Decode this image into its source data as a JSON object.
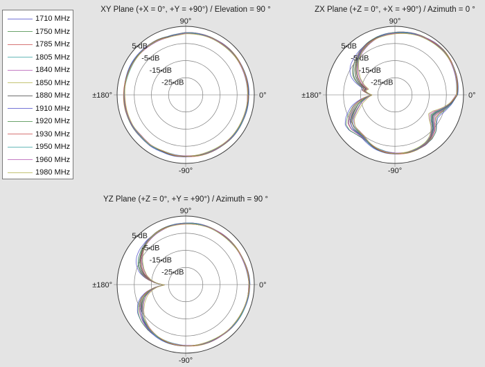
{
  "legend": {
    "items": [
      {
        "label": "1710 MHz",
        "color": "#5050cc"
      },
      {
        "label": "1750 MHz",
        "color": "#468c46"
      },
      {
        "label": "1785 MHz",
        "color": "#cc5050"
      },
      {
        "label": "1805 MHz",
        "color": "#40a8a8"
      },
      {
        "label": "1840 MHz",
        "color": "#b45ab4"
      },
      {
        "label": "1850 MHz",
        "color": "#b4b450"
      },
      {
        "label": "1880 MHz",
        "color": "#4a4a4a"
      },
      {
        "label": "1910 MHz",
        "color": "#5050cc"
      },
      {
        "label": "1920 MHz",
        "color": "#468c46"
      },
      {
        "label": "1930 MHz",
        "color": "#cc5050"
      },
      {
        "label": "1950 MHz",
        "color": "#40a8a8"
      },
      {
        "label": "1960 MHz",
        "color": "#b45ab4"
      },
      {
        "label": "1980 MHz",
        "color": "#b4b450"
      }
    ]
  },
  "series_offset_factors": [
    1.5,
    1.05,
    0.8,
    0.6,
    0.42,
    0.26,
    0.12,
    -0.02,
    -0.18,
    -0.36,
    -0.55,
    -0.76,
    -1.0
  ],
  "chart_data": [
    {
      "type": "polar-line",
      "title": "XY Plane (+X = 0°, +Y = +90°) / Elevation = 90 °",
      "angle_labels": {
        "top": "90°",
        "right": "0°",
        "left": "±180°",
        "bottom": "-90°"
      },
      "r_axis": {
        "min_db": -35,
        "max_db": 5,
        "rings_db": [
          5,
          -5,
          -15,
          -25
        ],
        "ring_labels": [
          "5 dB",
          "-5 dB",
          "-15 dB",
          "-25 dB"
        ]
      },
      "base_pattern_deg_db": [
        [
          0,
          1.3
        ],
        [
          20,
          1.5
        ],
        [
          45,
          1.6
        ],
        [
          65,
          1.4
        ],
        [
          80,
          1.2
        ],
        [
          90,
          1.1
        ],
        [
          97,
          0.5
        ],
        [
          107,
          0.2
        ],
        [
          117,
          0.7
        ],
        [
          130,
          1.0
        ],
        [
          150,
          1.0
        ],
        [
          165,
          0.9
        ],
        [
          180,
          0.8
        ],
        [
          195,
          1.0
        ],
        [
          210,
          0.8
        ],
        [
          222,
          0.5
        ],
        [
          235,
          0.9
        ],
        [
          248,
          0.4
        ],
        [
          260,
          0.8
        ],
        [
          272,
          0.8
        ],
        [
          285,
          1.0
        ],
        [
          300,
          1.2
        ],
        [
          320,
          1.4
        ],
        [
          340,
          1.4
        ],
        [
          360,
          1.3
        ]
      ],
      "series_spread_deg_db": [
        [
          0,
          0.25
        ],
        [
          360,
          0.25
        ]
      ],
      "bundle_jitter_db": 0.3
    },
    {
      "type": "polar-line",
      "title": "ZX Plane (+Z = 0°, +X = +90°) / Azimuth = 0 °",
      "angle_labels": {
        "top": "90°",
        "right": "0°",
        "left": "±180°",
        "bottom": "-90°"
      },
      "r_axis": {
        "min_db": -35,
        "max_db": 5,
        "rings_db": [
          5,
          -5,
          -15,
          -25
        ],
        "ring_labels": [
          "5 dB",
          "-5 dB",
          "-15 dB",
          "-25 dB"
        ]
      },
      "base_pattern_deg_db": [
        [
          0,
          1.0
        ],
        [
          8,
          1.6
        ],
        [
          18,
          2.3
        ],
        [
          30,
          2.9
        ],
        [
          42,
          3.2
        ],
        [
          52,
          3.0
        ],
        [
          62,
          2.6
        ],
        [
          75,
          2.0
        ],
        [
          88,
          1.3
        ],
        [
          98,
          0.6
        ],
        [
          108,
          -0.2
        ],
        [
          118,
          -1.4
        ],
        [
          128,
          -3.0
        ],
        [
          138,
          -5.2
        ],
        [
          147,
          -7.8
        ],
        [
          155,
          -10.5
        ],
        [
          162,
          -14.0
        ],
        [
          168,
          -18.0
        ],
        [
          172,
          -16.8
        ],
        [
          177,
          -19.3
        ],
        [
          180.5,
          -21.6
        ],
        [
          184,
          -19.0
        ],
        [
          189,
          -16.0
        ],
        [
          194,
          -13.0
        ],
        [
          199,
          -10.8
        ],
        [
          205,
          -7.8
        ],
        [
          211,
          -4.8
        ],
        [
          218,
          -3.8
        ],
        [
          226,
          -4.3
        ],
        [
          233,
          -4.4
        ],
        [
          241,
          -3.2
        ],
        [
          251,
          -2.0
        ],
        [
          261,
          -1.2
        ],
        [
          271,
          -0.8
        ],
        [
          282,
          -0.7
        ],
        [
          292,
          -0.9
        ],
        [
          302,
          -1.4
        ],
        [
          310,
          -2.6
        ],
        [
          318,
          -5.0
        ],
        [
          325,
          -8.4
        ],
        [
          331,
          -10.0
        ],
        [
          337,
          -8.8
        ],
        [
          344,
          -5.6
        ],
        [
          351,
          -2.4
        ],
        [
          356,
          -0.6
        ],
        [
          360,
          1.0
        ]
      ],
      "series_spread_deg_db": [
        [
          0,
          0.2
        ],
        [
          110,
          0.3
        ],
        [
          125,
          0.6
        ],
        [
          138,
          1.4
        ],
        [
          148,
          2.4
        ],
        [
          158,
          2.8
        ],
        [
          166,
          2.0
        ],
        [
          171,
          1.1
        ],
        [
          176,
          0.5
        ],
        [
          180.5,
          0.06
        ],
        [
          184,
          0.8
        ],
        [
          190,
          2.0
        ],
        [
          197,
          2.8
        ],
        [
          205,
          3.0
        ],
        [
          213,
          2.4
        ],
        [
          222,
          1.4
        ],
        [
          231,
          0.8
        ],
        [
          241,
          0.4
        ],
        [
          255,
          0.25
        ],
        [
          295,
          0.25
        ],
        [
          306,
          0.6
        ],
        [
          314,
          1.3
        ],
        [
          322,
          2.1
        ],
        [
          330,
          2.4
        ],
        [
          338,
          1.9
        ],
        [
          346,
          0.9
        ],
        [
          353,
          0.4
        ],
        [
          360,
          0.2
        ]
      ],
      "bundle_jitter_db": 0.4
    },
    {
      "type": "polar-line",
      "title": "YZ Plane (+Z = 0°, +Y = +90°) / Azimuth = 90 °",
      "angle_labels": {
        "top": "90°",
        "right": "0°",
        "left": "±180°",
        "bottom": "-90°"
      },
      "r_axis": {
        "min_db": -35,
        "max_db": 5,
        "rings_db": [
          5,
          -5,
          -15,
          -25
        ],
        "ring_labels": [
          "5 dB",
          "-5 dB",
          "-15 dB",
          "-25 dB"
        ]
      },
      "base_pattern_deg_db": [
        [
          0,
          2.0
        ],
        [
          20,
          1.5
        ],
        [
          40,
          1.2
        ],
        [
          60,
          1.1
        ],
        [
          80,
          0.9
        ],
        [
          95,
          0.6
        ],
        [
          108,
          0.2
        ],
        [
          120,
          -0.4
        ],
        [
          132,
          -1.4
        ],
        [
          142,
          -2.9
        ],
        [
          151,
          -4.8
        ],
        [
          159,
          -7.2
        ],
        [
          166,
          -10.0
        ],
        [
          172,
          -13.6
        ],
        [
          177,
          -17.8
        ],
        [
          181,
          -22.6
        ],
        [
          185,
          -17.8
        ],
        [
          190,
          -13.6
        ],
        [
          196,
          -10.0
        ],
        [
          203,
          -7.2
        ],
        [
          211,
          -4.8
        ],
        [
          220,
          -2.9
        ],
        [
          230,
          -1.4
        ],
        [
          242,
          -0.4
        ],
        [
          254,
          0.2
        ],
        [
          267,
          0.6
        ],
        [
          282,
          0.9
        ],
        [
          300,
          1.2
        ],
        [
          320,
          1.5
        ],
        [
          340,
          1.9
        ],
        [
          360,
          2.0
        ]
      ],
      "series_spread_deg_db": [
        [
          0,
          0.15
        ],
        [
          125,
          0.2
        ],
        [
          137,
          0.6
        ],
        [
          147,
          1.3
        ],
        [
          156,
          1.8
        ],
        [
          164,
          1.8
        ],
        [
          170,
          1.3
        ],
        [
          175,
          0.6
        ],
        [
          181,
          0.05
        ],
        [
          186,
          0.6
        ],
        [
          192,
          1.3
        ],
        [
          200,
          1.8
        ],
        [
          209,
          1.8
        ],
        [
          218,
          1.3
        ],
        [
          228,
          0.7
        ],
        [
          238,
          0.3
        ],
        [
          255,
          0.15
        ],
        [
          360,
          0.15
        ]
      ],
      "bundle_jitter_db": 0.35
    }
  ]
}
